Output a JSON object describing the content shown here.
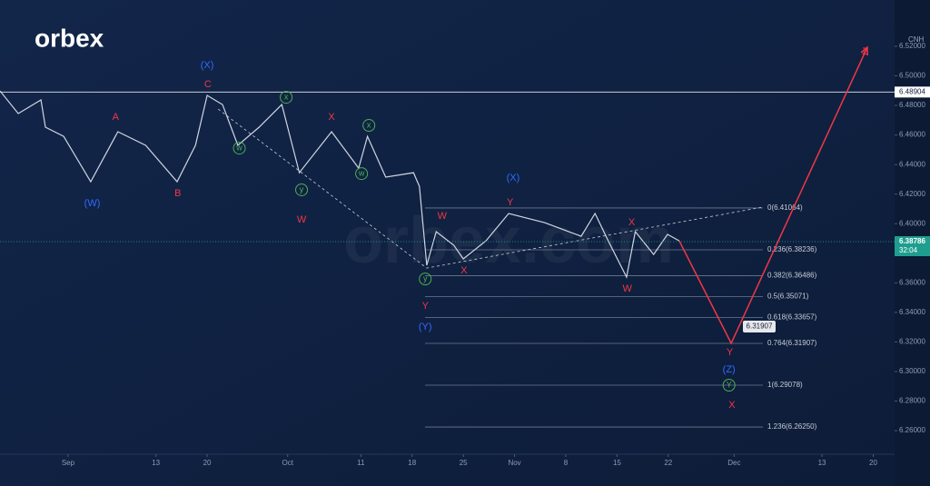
{
  "logo": "orbex",
  "watermark": "orbex.com",
  "chart_data": {
    "type": "line",
    "xlim": [
      -8.3,
      113.3
    ],
    "ylim": [
      6.2441,
      6.5513
    ],
    "xticks": [
      {
        "value": 1,
        "label": "Sep"
      },
      {
        "value": 13,
        "label": "13"
      },
      {
        "value": 20,
        "label": "20"
      },
      {
        "value": 31,
        "label": "Oct"
      },
      {
        "value": 41,
        "label": "11"
      },
      {
        "value": 48,
        "label": "18"
      },
      {
        "value": 55,
        "label": "25"
      },
      {
        "value": 62,
        "label": "Nov"
      },
      {
        "value": 69,
        "label": "8"
      },
      {
        "value": 76,
        "label": "15"
      },
      {
        "value": 83,
        "label": "22"
      },
      {
        "value": 92,
        "label": "Dec"
      },
      {
        "value": 104,
        "label": "13"
      },
      {
        "value": 111,
        "label": "20"
      }
    ],
    "yticks": [
      {
        "value": 6.26,
        "label": "6.26000"
      },
      {
        "value": 6.28,
        "label": "6.28000"
      },
      {
        "value": 6.3,
        "label": "6.30000"
      },
      {
        "value": 6.32,
        "label": "6.32000"
      },
      {
        "value": 6.34,
        "label": "6.34000"
      },
      {
        "value": 6.36,
        "label": "6.36000"
      },
      {
        "value": 6.38,
        "label": "6.38000"
      },
      {
        "value": 6.4,
        "label": "6.40000"
      },
      {
        "value": 6.42,
        "label": "6.42000"
      },
      {
        "value": 6.44,
        "label": "6.44000"
      },
      {
        "value": 6.46,
        "label": "6.46000"
      },
      {
        "value": 6.48,
        "label": "6.48000"
      },
      {
        "value": 6.5,
        "label": "6.50000"
      },
      {
        "value": 6.52,
        "label": "6.52000"
      }
    ],
    "x": [
      -8.3,
      -5.8,
      -2.7,
      -2.1,
      0.4,
      4.1,
      7.8,
      11.6,
      15.9,
      18.4,
      20.0,
      22.1,
      24.2,
      27.1,
      30.2,
      32.6,
      37.0,
      40.7,
      41.9,
      44.4,
      48.2,
      49.0,
      50.0,
      51.3,
      53.7,
      55.0,
      58.1,
      61.2,
      66.1,
      71.1,
      73.0,
      74.8,
      77.3,
      78.5,
      81.0,
      82.9,
      84.5
    ],
    "series": [
      {
        "name": "CNH",
        "color": "#d0d6e2",
        "values": [
          6.4898,
          6.4745,
          6.4837,
          6.4653,
          6.4591,
          6.4284,
          6.4622,
          6.453,
          6.4284,
          6.453,
          6.4868,
          6.4806,
          6.453,
          6.4653,
          6.4806,
          6.4345,
          6.4622,
          6.4376,
          6.4591,
          6.4315,
          6.4345,
          6.4253,
          6.3719,
          6.3946,
          6.3854,
          6.3762,
          6.3884,
          6.4069,
          6.4007,
          6.3915,
          6.4069,
          6.3884,
          6.3639,
          6.3946,
          6.3792,
          6.3928,
          6.3884
        ]
      }
    ],
    "projection": {
      "color": "#f23645",
      "x": [
        84.5,
        91.6,
        110.2
      ],
      "values": [
        6.3884,
        6.3191,
        6.5193
      ]
    },
    "trendlines": [
      {
        "color": "#c8cdd8",
        "x": [
          21.5,
          50.0,
          95.9
        ],
        "values": [
          6.4775,
          6.37,
          6.4112
        ]
      }
    ],
    "resistance": 6.48904,
    "last_price": 6.38786,
    "countdown": "32:04",
    "target": 6.31907,
    "fib_levels": [
      {
        "value": 6.41064,
        "label": "0(6.41064)"
      },
      {
        "value": 6.38236,
        "label": "0.236(6.38236)"
      },
      {
        "value": 6.36486,
        "label": "0.382(6.36486)"
      },
      {
        "value": 6.35071,
        "label": "0.5(6.35071)"
      },
      {
        "value": 6.33657,
        "label": "0.618(6.33657)"
      },
      {
        "value": 6.31907,
        "label": "0.764(6.31907)"
      },
      {
        "value": 6.29078,
        "label": "1(6.29078)"
      },
      {
        "value": 6.2625,
        "label": "1.236(6.26250)"
      }
    ],
    "annotations": [
      {
        "text": "(X)",
        "x": 20.0,
        "y": 6.507,
        "color": "#2f6bff"
      },
      {
        "text": "C",
        "x": 20.1,
        "y": 6.4941,
        "color": "#f23645"
      },
      {
        "text": "(W)",
        "x": 4.3,
        "y": 6.4136,
        "color": "#2f6bff"
      },
      {
        "text": "A",
        "x": 7.5,
        "y": 6.472,
        "color": "#f23645"
      },
      {
        "text": "B",
        "x": 16.0,
        "y": 6.4204,
        "color": "#f23645"
      },
      {
        "text": "x",
        "x": 30.8,
        "y": 6.4855,
        "color": "#4caf50",
        "circled": true
      },
      {
        "text": "w",
        "x": 24.4,
        "y": 6.4511,
        "color": "#4caf50",
        "circled": true
      },
      {
        "text": "y",
        "x": 32.9,
        "y": 6.4229,
        "color": "#4caf50",
        "circled": true
      },
      {
        "text": "X",
        "x": 37.0,
        "y": 6.472,
        "color": "#f23645"
      },
      {
        "text": "x",
        "x": 42.1,
        "y": 6.4665,
        "color": "#4caf50",
        "circled": true
      },
      {
        "text": "w",
        "x": 41.1,
        "y": 6.4339,
        "color": "#4caf50",
        "circled": true
      },
      {
        "text": "W",
        "x": 32.9,
        "y": 6.4026,
        "color": "#f23645"
      },
      {
        "text": "(X)",
        "x": 61.8,
        "y": 6.4308,
        "color": "#2f6bff"
      },
      {
        "text": "Y",
        "x": 61.4,
        "y": 6.4143,
        "color": "#f23645"
      },
      {
        "text": "W",
        "x": 52.1,
        "y": 6.405,
        "color": "#f23645"
      },
      {
        "text": "X",
        "x": 55.1,
        "y": 6.3682,
        "color": "#f23645"
      },
      {
        "text": "y",
        "x": 49.8,
        "y": 6.3626,
        "color": "#4caf50",
        "circled": true
      },
      {
        "text": "Y",
        "x": 49.8,
        "y": 6.3442,
        "color": "#f23645"
      },
      {
        "text": "(Y)",
        "x": 49.8,
        "y": 6.3301,
        "color": "#2f6bff"
      },
      {
        "text": "X",
        "x": 78.0,
        "y": 6.4007,
        "color": "#f23645"
      },
      {
        "text": "W",
        "x": 77.4,
        "y": 6.3559,
        "color": "#f23645"
      },
      {
        "text": "Y",
        "x": 91.4,
        "y": 6.3129,
        "color": "#f23645"
      },
      {
        "text": "(Z)",
        "x": 91.3,
        "y": 6.3012,
        "color": "#2f6bff"
      },
      {
        "text": "Y",
        "x": 91.3,
        "y": 6.2908,
        "color": "#4caf50",
        "circled": true
      },
      {
        "text": "X",
        "x": 91.7,
        "y": 6.2772,
        "color": "#f23645"
      },
      {
        "text": "Z",
        "x": 109.9,
        "y": 6.5163,
        "color": "#f23645"
      }
    ]
  }
}
